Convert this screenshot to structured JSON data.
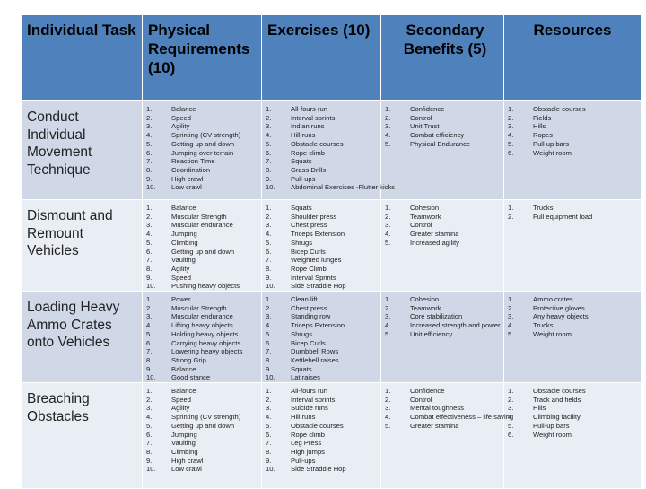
{
  "headers": {
    "task": "Individual Task",
    "physical": "Physical Requirements (10)",
    "exercises": "Exercises (10)",
    "secondary": "Secondary Benefits (5)",
    "resources": "Resources"
  },
  "rows": [
    {
      "task": "Conduct Individual Movement Technique",
      "physical": [
        "Balance",
        "Speed",
        "Agility",
        "Sprinting (CV strength)",
        "Getting up and down",
        "Jumping over terrain",
        "Reaction Time",
        "Coordination",
        "High crawl",
        "Low crawl"
      ],
      "exercises": [
        "All-fours run",
        "Interval sprints",
        "Indian runs",
        "Hill runs",
        "Obstacle courses",
        "Rope climb",
        "Squats",
        "Grass Drills",
        "Pull-ups",
        "Abdominal Exercises -Flutter kicks"
      ],
      "secondary": [
        "Confidence",
        "Control",
        "Unit Trust",
        "Combat efficiency",
        "Physical Endurance"
      ],
      "resources": [
        "Obstacle courses",
        "Fields",
        "Hills",
        "Ropes",
        "Pull up bars",
        "Weight room"
      ]
    },
    {
      "task": "Dismount and Remount Vehicles",
      "physical": [
        "Balance",
        "Muscular Strength",
        "Muscular endurance",
        "Jumping",
        "Climbing",
        "Getting up and down",
        "Vaulting",
        "Agility",
        "Speed",
        "Pushing heavy objects"
      ],
      "exercises": [
        "Squats",
        "Shoulder press",
        "Chest press",
        "Triceps Extension",
        "Shrugs",
        "Bicep Curls",
        "Weighted lunges",
        "Rope Climb",
        "Interval Sprints",
        "Side Straddle Hop"
      ],
      "secondary": [
        "Cohesion",
        "Teamwork",
        "Control",
        "Greater stamina",
        "Increased agility"
      ],
      "resources": [
        "Trucks",
        "Full equipment load"
      ]
    },
    {
      "task": "Loading Heavy Ammo Crates onto Vehicles",
      "physical": [
        "Power",
        "Muscular Strength",
        "Muscular endurance",
        "Lifting heavy objects",
        "Holding heavy objects",
        "Carrying heavy objects",
        "Lowering heavy objects",
        "Strong Grip",
        "Balance",
        "Good stance"
      ],
      "exercises": [
        "Clean lift",
        "Chest press",
        "Standing row",
        "Triceps Extension",
        "Shrugs",
        "Bicep Curls",
        "Dumbbell Rows",
        "Kettlebell raises",
        "Squats",
        "Lat raises"
      ],
      "secondary": [
        "Cohesion",
        "Teamwork",
        "Core stabilization",
        "Increased strength and power",
        "Unit efficiency"
      ],
      "resources": [
        "Ammo crates",
        "Protective gloves",
        "Any heavy objects",
        "Trucks",
        "Weight room"
      ]
    },
    {
      "task": "Breaching Obstacles",
      "physical": [
        "Balance",
        "Speed",
        "Agility",
        "Sprinting (CV strength)",
        "Getting up and down",
        "Jumping",
        "Vaulting",
        "Climbing",
        "High crawl",
        "Low crawl"
      ],
      "exercises": [
        "All-fours run",
        "Interval sprints",
        "Suicide runs",
        "Hill runs",
        "Obstacle courses",
        "Rope climb",
        "Leg Press",
        "High jumps",
        "Pull-ups",
        "Side Straddle Hop"
      ],
      "secondary": [
        "Confidence",
        "Control",
        "Mental toughness",
        "Combat effectiveness – life saving",
        "Greater stamina"
      ],
      "resources": [
        "Obstacle courses",
        "Track and fields",
        "Hills",
        "Climbing facility",
        "Pull-up bars",
        "Weight room"
      ]
    }
  ]
}
